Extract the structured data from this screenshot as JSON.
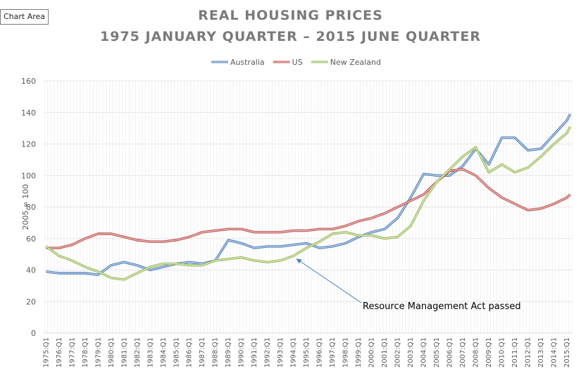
{
  "chart_area_tag": "Chart Area",
  "chart_data": {
    "type": "line",
    "title": "REAL HOUSING PRICES",
    "subtitle": "1975 JANUARY QUARTER – 2015 JUNE QUARTER",
    "xlabel": "",
    "ylabel": "2005 = 100",
    "ylim": [
      0,
      160
    ],
    "yticks": [
      0,
      20,
      40,
      60,
      80,
      100,
      120,
      140,
      160
    ],
    "grid": true,
    "legend_position": "top",
    "x_start": "1975:Q1",
    "x_end": "2015:Q2",
    "x_frequency": "quarterly",
    "xtick_labels": [
      "1975:Q1",
      "1976:Q1",
      "1977:Q1",
      "1978:Q1",
      "1979:Q1",
      "1980:Q1",
      "1981:Q1",
      "1982:Q1",
      "1983:Q1",
      "1984:Q1",
      "1985:Q1",
      "1986:Q1",
      "1987:Q1",
      "1988:Q1",
      "1989:Q1",
      "1990:Q1",
      "1991:Q1",
      "1992:Q1",
      "1993:Q1",
      "1994:Q1",
      "1995:Q1",
      "1996:Q1",
      "1997:Q1",
      "1998:Q1",
      "1999:Q1",
      "2000:Q1",
      "2001:Q1",
      "2002:Q1",
      "2003:Q1",
      "2004:Q1",
      "2005:Q1",
      "2006:Q1",
      "2007:Q1",
      "2008:Q1",
      "2009:Q1",
      "2010:Q1",
      "2011:Q1",
      "2012:Q1",
      "2013:Q1",
      "2014:Q1",
      "2015:Q1"
    ],
    "anchor_x": [
      "1975:Q1",
      "1976:Q1",
      "1977:Q1",
      "1978:Q1",
      "1979:Q1",
      "1980:Q1",
      "1981:Q1",
      "1982:Q1",
      "1983:Q1",
      "1984:Q1",
      "1985:Q1",
      "1986:Q1",
      "1987:Q1",
      "1988:Q1",
      "1989:Q1",
      "1990:Q1",
      "1991:Q1",
      "1992:Q1",
      "1993:Q1",
      "1994:Q1",
      "1995:Q1",
      "1996:Q1",
      "1997:Q1",
      "1998:Q1",
      "1999:Q1",
      "2000:Q1",
      "2001:Q1",
      "2002:Q1",
      "2003:Q1",
      "2004:Q1",
      "2005:Q1",
      "2006:Q1",
      "2007:Q1",
      "2008:Q1",
      "2009:Q1",
      "2010:Q1",
      "2011:Q1",
      "2012:Q1",
      "2013:Q1",
      "2014:Q1",
      "2015:Q1",
      "2015:Q2"
    ],
    "series": [
      {
        "name": "Australia",
        "color": "#4f81bd",
        "values": [
          39,
          38,
          38,
          38,
          37,
          43,
          45,
          43,
          40,
          42,
          44,
          45,
          44,
          46,
          59,
          57,
          54,
          55,
          55,
          56,
          57,
          54,
          55,
          57,
          61,
          64,
          66,
          73,
          86,
          101,
          100,
          100,
          106,
          117,
          107,
          124,
          124,
          116,
          117,
          126,
          135,
          139
        ]
      },
      {
        "name": "US",
        "color": "#c0504d",
        "values": [
          54,
          54,
          56,
          60,
          63,
          63,
          61,
          59,
          58,
          58,
          59,
          61,
          64,
          65,
          66,
          66,
          64,
          64,
          64,
          65,
          65,
          66,
          66,
          68,
          71,
          73,
          76,
          80,
          84,
          88,
          96,
          103,
          104,
          100,
          92,
          86,
          82,
          78,
          79,
          82,
          86,
          88
        ]
      },
      {
        "name": "New Zealand",
        "color": "#9bbb59",
        "values": [
          55,
          49,
          46,
          42,
          39,
          35,
          34,
          38,
          42,
          44,
          44,
          43,
          43,
          46,
          47,
          48,
          46,
          45,
          46,
          49,
          54,
          58,
          63,
          64,
          62,
          62,
          60,
          61,
          68,
          84,
          96,
          104,
          112,
          118,
          102,
          107,
          102,
          105,
          112,
          120,
          127,
          131
        ]
      }
    ],
    "annotations": [
      {
        "text": "Resource Management Act passed",
        "arrow_to": {
          "x": "1994:Q1",
          "y": 49
        }
      }
    ]
  }
}
